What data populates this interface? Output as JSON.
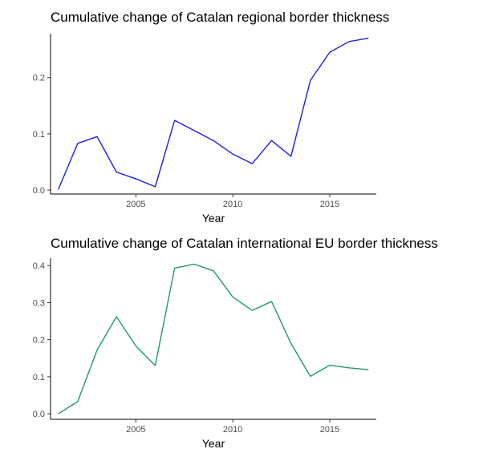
{
  "chart_data": [
    {
      "type": "line",
      "title": "Cumulative change of Catalan regional border thickness",
      "xlabel": "Year",
      "ylabel": "",
      "color": "#1f1fe6",
      "x": [
        2001,
        2002,
        2003,
        2004,
        2005,
        2006,
        2007,
        2008,
        2009,
        2010,
        2011,
        2012,
        2013,
        2014,
        2015,
        2016,
        2017
      ],
      "values": [
        0.001,
        0.083,
        0.095,
        0.032,
        0.02,
        0.006,
        0.124,
        0.106,
        0.088,
        0.064,
        0.047,
        0.088,
        0.06,
        0.195,
        0.245,
        0.264,
        0.27
      ],
      "xlim": [
        2000.6,
        2017.4
      ],
      "ylim": [
        -0.007,
        0.278
      ],
      "xticks": [
        2005,
        2010,
        2015
      ],
      "yticks": [
        0.0,
        0.1,
        0.2
      ],
      "xtick_labels": [
        "2005",
        "2010",
        "2015"
      ],
      "ytick_labels": [
        "0.0",
        "0.1",
        "0.2"
      ],
      "grid": false
    },
    {
      "type": "line",
      "title": "Cumulative change of Catalan international EU border thickness",
      "xlabel": "Year",
      "ylabel": "",
      "color": "#1e9a6e",
      "x": [
        2001,
        2002,
        2003,
        2004,
        2005,
        2006,
        2007,
        2008,
        2009,
        2010,
        2011,
        2012,
        2013,
        2014,
        2015,
        2016,
        2017
      ],
      "values": [
        0.0,
        0.033,
        0.172,
        0.262,
        0.183,
        0.13,
        0.393,
        0.404,
        0.386,
        0.315,
        0.279,
        0.303,
        0.19,
        0.101,
        0.131,
        0.124,
        0.119
      ],
      "xlim": [
        2000.6,
        2017.4
      ],
      "ylim": [
        -0.015,
        0.42
      ],
      "xticks": [
        2005,
        2010,
        2015
      ],
      "yticks": [
        0.0,
        0.1,
        0.2,
        0.3,
        0.4
      ],
      "xtick_labels": [
        "2005",
        "2010",
        "2015"
      ],
      "ytick_labels": [
        "0.0",
        "0.1",
        "0.2",
        "0.3",
        "0.4"
      ],
      "grid": false
    }
  ]
}
